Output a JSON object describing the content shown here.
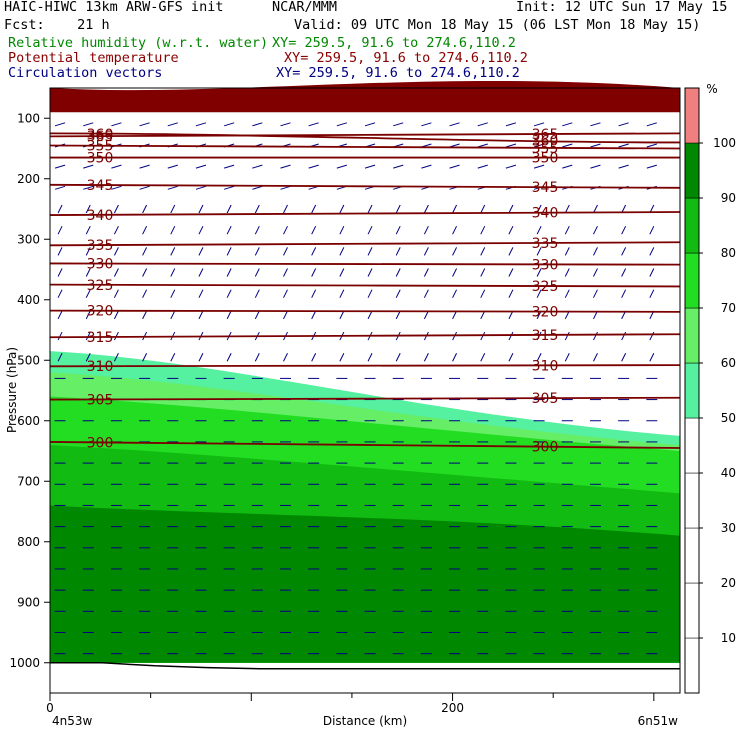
{
  "header": {
    "title": "HAIC-HIWC 13km ARW-GFS init",
    "org": "NCAR/MMM",
    "init": "Init: 12 UTC Sun 17 May 15",
    "fcst": "Fcst:    21 h",
    "valid": "Valid: 09 UTC Mon 18 May 15 (06 LST Mon 18 May 15)",
    "fields": [
      {
        "name": "Relative humidity (w.r.t. water)",
        "xy": "XY= 259.5, 91.6 to 274.6,110.2",
        "color": "#008800"
      },
      {
        "name": "Potential temperature",
        "xy": "XY= 259.5, 91.6 to 274.6,110.2",
        "color": "#8b0000"
      },
      {
        "name": "Circulation vectors",
        "xy": "XY= 259.5, 91.6 to 274.6,110.2",
        "color": "#000080"
      }
    ]
  },
  "colors": {
    "rh_fill": [
      "#ffffff",
      "#ffffff",
      "#ffffff",
      "#ffffff",
      "#ffffff",
      "#55f0a0",
      "#66ee66",
      "#22dd22",
      "#11bb11",
      "#008800",
      "#f08080",
      "#800000"
    ],
    "theta_line": "#7a0000",
    "vector": "#000080",
    "terrain": "#000000"
  },
  "chart_data": {
    "type": "cross-section",
    "ylabel": "Pressure (hPa)",
    "xlabel": "Distance (km)",
    "x_start_label": "4n53w",
    "x_end_label": "6n51w",
    "x_ticks": [
      "0",
      "200"
    ],
    "y_ticks": [
      "100",
      "200",
      "300",
      "400",
      "500",
      "600",
      "700",
      "800",
      "900",
      "1000"
    ],
    "x_range_km": [
      0,
      313
    ],
    "y_range_hpa": [
      50,
      1050
    ],
    "rh_colorbar": {
      "unit": "%",
      "levels": [
        "10",
        "20",
        "30",
        "40",
        "50",
        "60",
        "70",
        "80",
        "90",
        "100"
      ],
      "bands": [
        0,
        10,
        20,
        30,
        40,
        50,
        60,
        70,
        80,
        90,
        100
      ]
    },
    "rh_regions": [
      {
        "name": "rh-50-60",
        "rh": 55,
        "top_left_hpa": 485,
        "top_right_hpa": 625,
        "bottom_hpa": 1000
      },
      {
        "name": "rh-60-70",
        "rh": 65,
        "top_left_hpa": 520,
        "top_right_hpa": 640,
        "bottom_hpa": 1000
      },
      {
        "name": "rh-70-80",
        "rh": 75,
        "top_left_hpa": 560,
        "top_right_hpa": 650,
        "bottom_hpa": 1000
      },
      {
        "name": "rh-80-90",
        "rh": 85,
        "top_left_hpa": 640,
        "top_right_hpa": 720,
        "bottom_hpa": 1000
      },
      {
        "name": "rh-90-100",
        "rh": 95,
        "top_left_hpa": 740,
        "top_right_hpa": 790,
        "bottom_hpa": 1000
      },
      {
        "name": "rh-upper-100",
        "rh": 100,
        "top_left_hpa": 50,
        "top_right_hpa": 50,
        "bottom_hpa": 90
      }
    ],
    "theta_contours": [
      {
        "label": "365",
        "hpa_left": 130,
        "hpa_right": 125
      },
      {
        "label": "360",
        "hpa_left": 125,
        "hpa_right": 140
      },
      {
        "label": "355",
        "hpa_left": 145,
        "hpa_right": 150
      },
      {
        "label": "350",
        "hpa_left": 165,
        "hpa_right": 165
      },
      {
        "label": "345",
        "hpa_left": 210,
        "hpa_right": 215
      },
      {
        "label": "340",
        "hpa_left": 260,
        "hpa_right": 255
      },
      {
        "label": "335",
        "hpa_left": 310,
        "hpa_right": 305
      },
      {
        "label": "330",
        "hpa_left": 340,
        "hpa_right": 342
      },
      {
        "label": "325",
        "hpa_left": 375,
        "hpa_right": 378
      },
      {
        "label": "320",
        "hpa_left": 418,
        "hpa_right": 420
      },
      {
        "label": "315",
        "hpa_left": 462,
        "hpa_right": 457
      },
      {
        "label": "310",
        "hpa_left": 510,
        "hpa_right": 508
      },
      {
        "label": "305",
        "hpa_left": 565,
        "hpa_right": 562
      },
      {
        "label": "300",
        "hpa_left": 635,
        "hpa_right": 645
      }
    ],
    "surface_pressure_hpa": [
      1000,
      1000,
      1005,
      1008,
      1010,
      1010,
      1010,
      1010,
      1010,
      1010,
      1010,
      1010,
      1010
    ]
  }
}
